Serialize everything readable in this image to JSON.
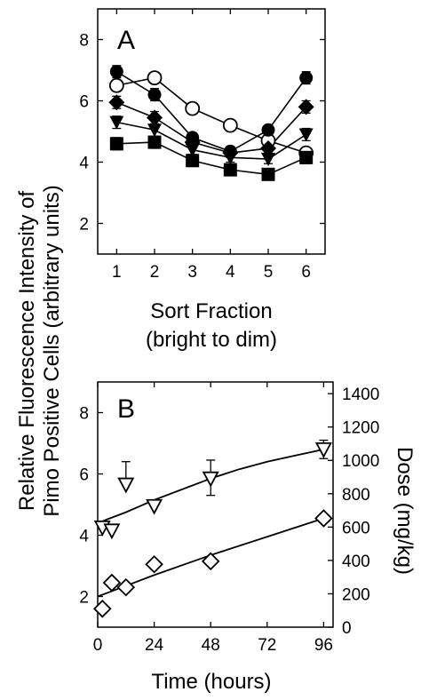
{
  "ylabel_line1": "Relative Fluorescence Intensity of",
  "ylabel_line2": "Pimo Positive Cells (arbitrary units)",
  "chart_data": [
    {
      "panel": "A",
      "type": "line",
      "xlabel_line1": "Sort Fraction",
      "xlabel_line2": "(bright to dim)",
      "xlim": [
        0.5,
        6.5
      ],
      "ylim": [
        1,
        9
      ],
      "x_ticks": [
        1,
        2,
        3,
        4,
        5,
        6
      ],
      "y_ticks": [
        2,
        4,
        6,
        8
      ],
      "grid": false,
      "x": [
        1,
        2,
        3,
        4,
        5,
        6
      ],
      "series": [
        {
          "marker": "open-circle",
          "values": [
            6.5,
            6.75,
            5.75,
            5.2,
            4.7,
            4.3
          ]
        },
        {
          "marker": "filled-circle",
          "values": [
            6.95,
            6.2,
            4.8,
            4.35,
            5.05,
            6.75
          ],
          "err": [
            0.2,
            0.2,
            0.15,
            0.15,
            0.15,
            0.2
          ]
        },
        {
          "marker": "filled-diamond",
          "values": [
            5.95,
            5.45,
            4.65,
            4.3,
            4.45,
            5.8
          ],
          "err": [
            0.2,
            0.2,
            0.15,
            0.15,
            0.15,
            0.2
          ]
        },
        {
          "marker": "filled-triangle",
          "values": [
            5.3,
            5.05,
            4.4,
            4.15,
            4.1,
            4.9
          ],
          "err": [
            0.2,
            0.2,
            0.15,
            0.15,
            0.15,
            0.2
          ]
        },
        {
          "marker": "filled-square",
          "values": [
            4.6,
            4.65,
            4.05,
            3.75,
            3.6,
            4.15
          ],
          "err": [
            0.2,
            0.2,
            0.15,
            0.15,
            0.15,
            0.2
          ]
        }
      ]
    },
    {
      "panel": "B",
      "type": "scatter",
      "xlabel": "Time (hours)",
      "ylabel_right": "Dose (mg/kg)",
      "xlim": [
        0,
        100
      ],
      "ylim": [
        1,
        9
      ],
      "ylim_right": [
        0,
        1470
      ],
      "x_ticks": [
        0,
        24,
        48,
        72,
        96
      ],
      "y_ticks": [
        2,
        4,
        6,
        8
      ],
      "y_ticks_right": [
        0,
        200,
        400,
        600,
        800,
        1000,
        1200,
        1400
      ],
      "grid": false,
      "series": [
        {
          "marker": "open-triangle-down",
          "x": [
            2,
            6,
            12,
            24,
            48,
            96
          ],
          "y": [
            4.25,
            4.15,
            5.65,
            4.95,
            5.85,
            6.8
          ],
          "err_up": [
            0,
            0,
            0.75,
            0,
            0.6,
            0.3
          ],
          "err_down": [
            0,
            0,
            0,
            0,
            0.55,
            0.3
          ],
          "fit": [
            [
              0,
              4.4
            ],
            [
              12,
              4.75
            ],
            [
              24,
              5.15
            ],
            [
              36,
              5.5
            ],
            [
              48,
              5.85
            ],
            [
              60,
              6.15
            ],
            [
              72,
              6.4
            ],
            [
              84,
              6.6
            ],
            [
              96,
              6.8
            ]
          ]
        },
        {
          "marker": "open-diamond",
          "x": [
            2,
            6,
            12,
            24,
            48,
            96
          ],
          "y": [
            1.6,
            2.45,
            2.3,
            3.05,
            3.15,
            4.55
          ],
          "fit": [
            [
              0,
              2.0
            ],
            [
              24,
              2.7
            ],
            [
              48,
              3.35
            ],
            [
              72,
              3.95
            ],
            [
              96,
              4.55
            ]
          ]
        }
      ]
    }
  ]
}
